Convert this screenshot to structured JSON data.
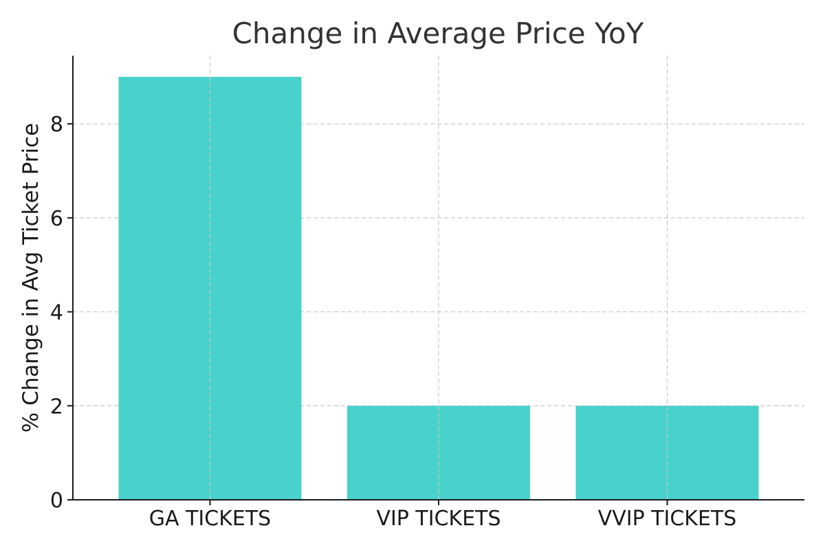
{
  "chart_data": {
    "type": "bar",
    "title": "Change in Average Price YoY",
    "xlabel": "",
    "ylabel": "% Change in Avg Ticket Price",
    "categories": [
      "GA TICKETS",
      "VIP TICKETS",
      "VVIP TICKETS"
    ],
    "values": [
      9,
      2,
      2
    ],
    "ylim": [
      0,
      9.45
    ],
    "yticks": [
      0,
      2,
      4,
      6,
      8
    ],
    "grid": true,
    "bar_color": "#48D1CC"
  }
}
